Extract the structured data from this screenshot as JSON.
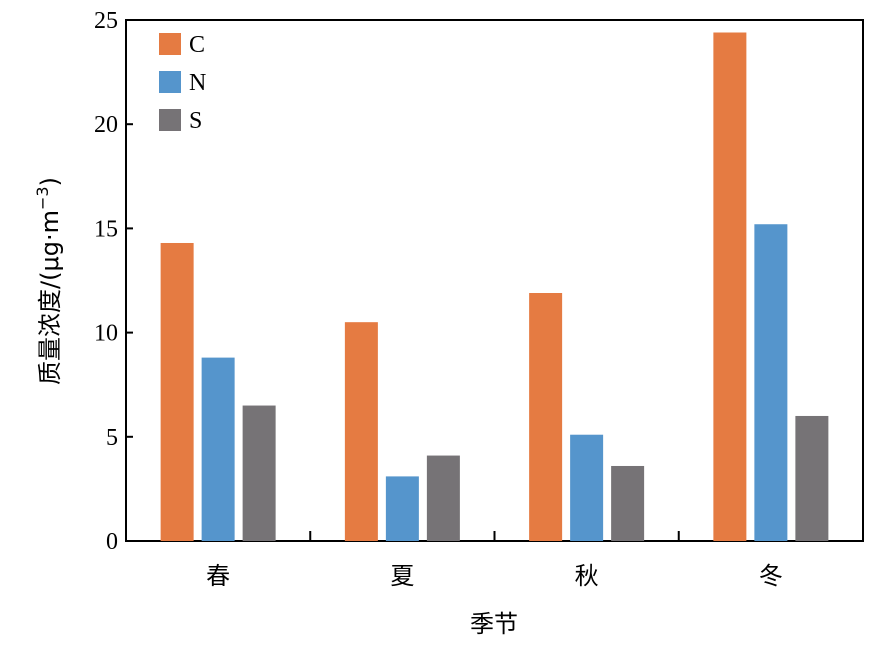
{
  "chart_data": {
    "type": "bar",
    "categories": [
      "春",
      "夏",
      "秋",
      "冬"
    ],
    "series": [
      {
        "name": "C",
        "color": "#E57B42",
        "values": [
          14.3,
          10.5,
          11.9,
          24.4
        ]
      },
      {
        "name": "N",
        "color": "#5595CC",
        "values": [
          8.8,
          3.1,
          5.1,
          15.2
        ]
      },
      {
        "name": "S",
        "color": "#767376",
        "values": [
          6.5,
          4.1,
          3.6,
          6.0
        ]
      }
    ],
    "xlabel": "季节",
    "ylabel": "质量浓度/(μg·m",
    "ylabel_sup": "−3",
    "ylabel_close": ")",
    "ylim": [
      0,
      25
    ],
    "yticks": [
      "0",
      "5",
      "10",
      "15",
      "20",
      "25"
    ],
    "ytick_values": [
      0,
      5,
      10,
      15,
      20,
      25
    ],
    "grid": false,
    "legend_position": "top-left"
  }
}
